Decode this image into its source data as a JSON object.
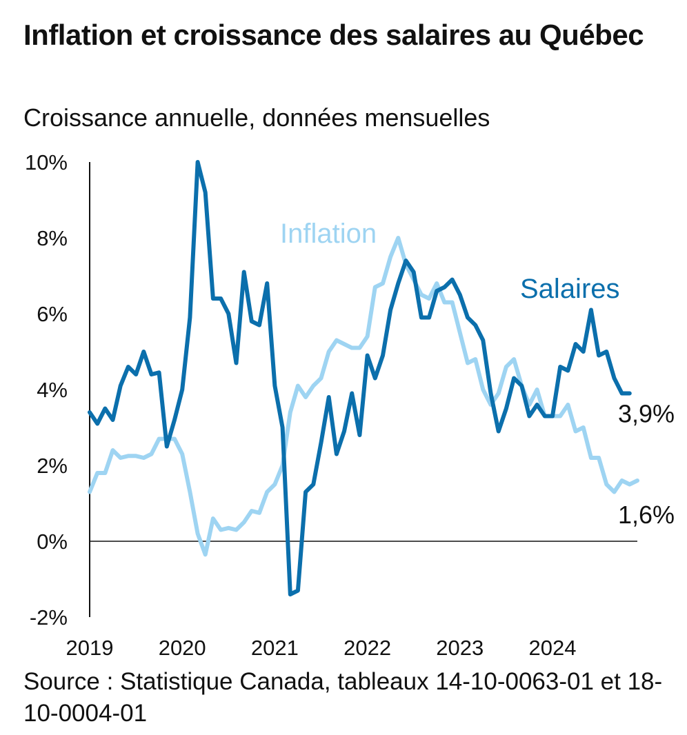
{
  "title": "Inflation et croissance des salaires au Québec",
  "subtitle": "Croissance annuelle, données mensuelles",
  "source": "Source : Statistique Canada, tableaux 14-10-0063-01 et 18-10-0004-01",
  "colors": {
    "inflation": "#9ed4f2",
    "salaires": "#0b6fac",
    "axis": "#111111"
  },
  "chart_data": {
    "type": "line",
    "x_label": "",
    "y_label": "",
    "ylim": [
      -2,
      10
    ],
    "xlim": [
      "2019-01",
      "2024-12"
    ],
    "y_ticks": [
      -2,
      0,
      2,
      4,
      6,
      8,
      10
    ],
    "y_tick_labels": [
      "-2%",
      "0%",
      "2%",
      "4%",
      "6%",
      "8%",
      "10%"
    ],
    "x_ticks": [
      "2019-01",
      "2020-01",
      "2021-01",
      "2022-01",
      "2023-01",
      "2024-01"
    ],
    "x_tick_labels": [
      "2019",
      "2020",
      "2021",
      "2022",
      "2023",
      "2024"
    ],
    "series_x_start": "2019-01",
    "series_x_step": "1 month",
    "grid": false,
    "series": [
      {
        "name": "Inflation",
        "label_text": "Inflation",
        "color": "#9ed4f2",
        "values": [
          1.3,
          1.8,
          1.8,
          2.4,
          2.2,
          2.25,
          2.25,
          2.2,
          2.3,
          2.7,
          2.7,
          2.7,
          2.3,
          1.3,
          0.2,
          -0.35,
          0.6,
          0.3,
          0.35,
          0.3,
          0.5,
          0.8,
          0.75,
          1.3,
          1.5,
          2.0,
          3.4,
          4.1,
          3.8,
          4.1,
          4.3,
          5.0,
          5.3,
          5.2,
          5.1,
          5.1,
          5.4,
          6.7,
          6.8,
          7.5,
          8.0,
          7.3,
          6.9,
          6.5,
          6.4,
          6.8,
          6.3,
          6.3,
          5.5,
          4.7,
          4.8,
          4.0,
          3.6,
          3.9,
          4.6,
          4.8,
          4.1,
          3.6,
          4.0,
          3.3,
          3.3,
          3.3,
          3.6,
          2.9,
          3.0,
          2.2,
          2.2,
          1.5,
          1.3,
          1.6,
          1.5,
          1.6
        ]
      },
      {
        "name": "Salaires",
        "label_text": "Salaires",
        "color": "#0b6fac",
        "values": [
          3.4,
          3.1,
          3.5,
          3.2,
          4.1,
          4.6,
          4.4,
          5.0,
          4.4,
          4.45,
          2.5,
          3.2,
          4.0,
          5.9,
          10.0,
          9.2,
          6.4,
          6.4,
          6.0,
          4.7,
          7.1,
          5.8,
          5.7,
          6.8,
          4.1,
          3.0,
          -1.4,
          -1.3,
          1.3,
          1.5,
          2.6,
          3.8,
          2.3,
          2.9,
          3.9,
          2.8,
          4.9,
          4.3,
          4.9,
          6.1,
          6.8,
          7.4,
          7.1,
          5.9,
          5.9,
          6.6,
          6.7,
          6.9,
          6.5,
          5.9,
          5.7,
          5.3,
          3.9,
          2.9,
          3.5,
          4.3,
          4.1,
          3.3,
          3.6,
          3.3,
          3.3,
          4.6,
          4.5,
          5.2,
          5.0,
          6.1,
          4.9,
          5.0,
          4.3,
          3.9,
          3.9
        ]
      }
    ],
    "annotations": [
      {
        "series": "Salaires",
        "text": "3,9%"
      },
      {
        "series": "Inflation",
        "text": "1,6%"
      }
    ]
  }
}
